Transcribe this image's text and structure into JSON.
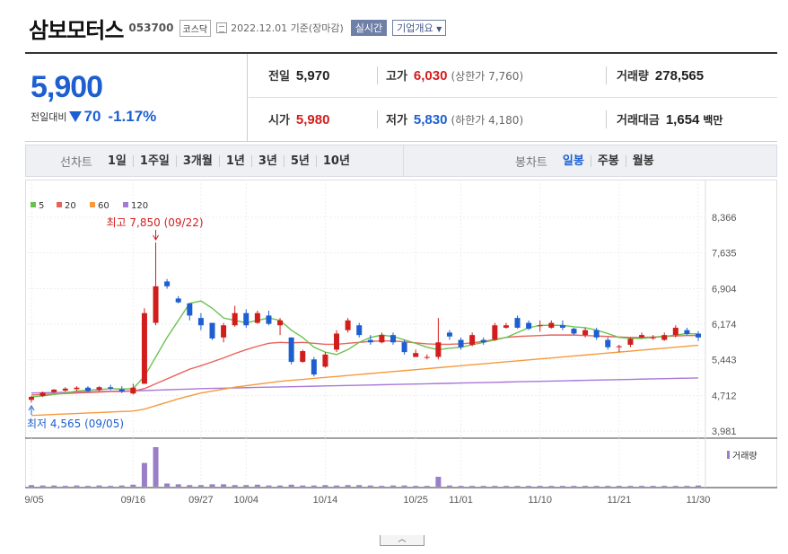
{
  "header": {
    "name": "삼보모터스",
    "code": "053700",
    "market": "코스닥",
    "date": "2022.12.01 기준(장마감)",
    "live_label": "실시간",
    "corp_label": "기업개요"
  },
  "quote": {
    "price": "5,900",
    "change_label": "전일대비",
    "change_amount": "70",
    "change_pct": "-1.17%",
    "prev_label": "전일",
    "prev": "5,970",
    "high_label": "고가",
    "high": "6,030",
    "upper_label": "(상한가 7,760)",
    "volume_label": "거래량",
    "volume": "278,565",
    "open_label": "시가",
    "open": "5,980",
    "low_label": "저가",
    "low": "5,830",
    "lower_label": "(하한가 4,180)",
    "amount_label": "거래대금",
    "amount": "1,654",
    "amount_unit": "백만"
  },
  "tabs": {
    "line_label": "선차트",
    "line_tabs": [
      "1일",
      "1주일",
      "3개월",
      "1년",
      "3년",
      "5년",
      "10년"
    ],
    "candle_label": "봉차트",
    "candle_tabs": [
      "일봉",
      "주봉",
      "월봉"
    ],
    "candle_selected": 0
  },
  "colors": {
    "up": "#d21d1d",
    "down": "#1d5fd0",
    "ma5": "#6ac24f",
    "ma20": "#e8625c",
    "ma60": "#f59a3e",
    "ma120": "#a878d8",
    "vol": "#9a7ec8"
  },
  "chart_data": {
    "type": "candlestick",
    "legend": [
      "5",
      "20",
      "60",
      "120"
    ],
    "y_ticks": [
      "8,366",
      "7,635",
      "6,904",
      "6,174",
      "5,443",
      "4,712",
      "3,981"
    ],
    "ylim": [
      3981,
      8366
    ],
    "x_ticks": [
      "09/05",
      "09/16",
      "09/27",
      "10/04",
      "10/14",
      "10/25",
      "11/01",
      "11/10",
      "11/21",
      "11/30"
    ],
    "x_tick_index": [
      0,
      9,
      15,
      19,
      26,
      34,
      38,
      45,
      52,
      59
    ],
    "high_annotation": "최고 7,850 (09/22)",
    "low_annotation": "최저 4,565 (09/05)",
    "volume_label": "거래량",
    "candles": [
      [
        4620,
        4700,
        4565,
        4680
      ],
      [
        4700,
        4790,
        4680,
        4770
      ],
      [
        4780,
        4840,
        4760,
        4830
      ],
      [
        4810,
        4880,
        4790,
        4850
      ],
      [
        4840,
        4900,
        4800,
        4870
      ],
      [
        4870,
        4900,
        4780,
        4800
      ],
      [
        4820,
        4900,
        4800,
        4880
      ],
      [
        4880,
        4930,
        4820,
        4850
      ],
      [
        4840,
        4900,
        4760,
        4790
      ],
      [
        4750,
        4950,
        4730,
        4870
      ],
      [
        4950,
        6500,
        4950,
        6400
      ],
      [
        6200,
        7850,
        6150,
        6950
      ],
      [
        7050,
        7100,
        6900,
        6950
      ],
      [
        6700,
        6750,
        6600,
        6620
      ],
      [
        6600,
        6600,
        6250,
        6350
      ],
      [
        6300,
        6400,
        6050,
        6150
      ],
      [
        6200,
        6200,
        5850,
        5880
      ],
      [
        5900,
        6200,
        5800,
        6150
      ],
      [
        6150,
        6550,
        6120,
        6400
      ],
      [
        6400,
        6480,
        6100,
        6150
      ],
      [
        6200,
        6450,
        6180,
        6400
      ],
      [
        6350,
        6450,
        6150,
        6180
      ],
      [
        6150,
        6300,
        5950,
        6250
      ],
      [
        5900,
        5900,
        5350,
        5400
      ],
      [
        5400,
        5650,
        5380,
        5620
      ],
      [
        5450,
        5500,
        5100,
        5140
      ],
      [
        5300,
        5600,
        5280,
        5550
      ],
      [
        5650,
        6050,
        5600,
        5980
      ],
      [
        6050,
        6300,
        6000,
        6250
      ],
      [
        6150,
        6200,
        5900,
        5950
      ],
      [
        5850,
        5950,
        5750,
        5800
      ],
      [
        5800,
        6000,
        5780,
        5950
      ],
      [
        5950,
        6000,
        5750,
        5800
      ],
      [
        5800,
        5850,
        5550,
        5600
      ],
      [
        5500,
        5650,
        5500,
        5580
      ],
      [
        5500,
        5550,
        5450,
        5500
      ],
      [
        5500,
        6300,
        5450,
        5800
      ],
      [
        6000,
        6050,
        5850,
        5920
      ],
      [
        5850,
        5900,
        5650,
        5700
      ],
      [
        5750,
        6000,
        5720,
        5950
      ],
      [
        5850,
        5900,
        5750,
        5800
      ],
      [
        5850,
        6200,
        5830,
        6150
      ],
      [
        6100,
        6200,
        6080,
        6150
      ],
      [
        6300,
        6350,
        6080,
        6100
      ],
      [
        6200,
        6250,
        6050,
        6080
      ],
      [
        6150,
        6250,
        6020,
        6150
      ],
      [
        6100,
        6250,
        6080,
        6200
      ],
      [
        6150,
        6250,
        6050,
        6100
      ],
      [
        6080,
        6100,
        5950,
        5980
      ],
      [
        5950,
        6100,
        5900,
        6050
      ],
      [
        6050,
        6100,
        5850,
        5900
      ],
      [
        5850,
        5900,
        5650,
        5700
      ],
      [
        5700,
        5750,
        5600,
        5720
      ],
      [
        5750,
        5900,
        5700,
        5870
      ],
      [
        5900,
        6000,
        5880,
        5950
      ],
      [
        5900,
        5950,
        5850,
        5900
      ],
      [
        5850,
        6000,
        5830,
        5950
      ],
      [
        5950,
        6150,
        5900,
        6100
      ],
      [
        6050,
        6100,
        5950,
        5970
      ],
      [
        5980,
        6030,
        5830,
        5900
      ]
    ],
    "ma5": [
      4680,
      4700,
      4730,
      4760,
      4800,
      4820,
      4830,
      4850,
      4840,
      4850,
      5100,
      5500,
      5900,
      6250,
      6600,
      6650,
      6500,
      6300,
      6250,
      6200,
      6250,
      6300,
      6250,
      6050,
      5900,
      5700,
      5600,
      5550,
      5650,
      5800,
      5900,
      5950,
      5920,
      5850,
      5780,
      5700,
      5650,
      5680,
      5700,
      5750,
      5800,
      5850,
      5900,
      6000,
      6100,
      6150,
      6150,
      6150,
      6120,
      6100,
      6050,
      5980,
      5900,
      5880,
      5880,
      5900,
      5920,
      5950,
      5980,
      5970
    ],
    "ma20": [
      4720,
      4730,
      4740,
      4750,
      4760,
      4770,
      4780,
      4790,
      4790,
      4800,
      4850,
      4950,
      5050,
      5150,
      5250,
      5320,
      5400,
      5480,
      5570,
      5650,
      5720,
      5780,
      5800,
      5790,
      5800,
      5780,
      5760,
      5760,
      5780,
      5800,
      5820,
      5830,
      5830,
      5810,
      5790,
      5770,
      5760,
      5760,
      5770,
      5790,
      5820,
      5860,
      5900,
      5920,
      5930,
      5940,
      5950,
      5950,
      5950,
      5940,
      5930,
      5920,
      5910,
      5900,
      5900,
      5910,
      5920,
      5930,
      5940,
      5940
    ],
    "ma60": [
      4300,
      4310,
      4320,
      4330,
      4340,
      4350,
      4360,
      4370,
      4380,
      4390,
      4430,
      4500,
      4570,
      4640,
      4700,
      4760,
      4800,
      4840,
      4880,
      4910,
      4940,
      4970,
      5000,
      5020,
      5040,
      5060,
      5080,
      5100,
      5120,
      5140,
      5160,
      5180,
      5200,
      5220,
      5240,
      5260,
      5280,
      5300,
      5320,
      5340,
      5360,
      5380,
      5400,
      5420,
      5440,
      5460,
      5480,
      5500,
      5520,
      5540,
      5560,
      5580,
      5600,
      5620,
      5640,
      5660,
      5680,
      5700,
      5720,
      5740
    ],
    "ma120": [
      4760,
      4765,
      4770,
      4775,
      4780,
      4785,
      4790,
      4795,
      4800,
      4805,
      4810,
      4818,
      4826,
      4834,
      4842,
      4850,
      4855,
      4860,
      4865,
      4870,
      4875,
      4880,
      4885,
      4890,
      4895,
      4900,
      4905,
      4910,
      4915,
      4920,
      4925,
      4930,
      4935,
      4940,
      4945,
      4950,
      4955,
      4960,
      4965,
      4970,
      4975,
      4980,
      4985,
      4990,
      4995,
      5000,
      5005,
      5010,
      5015,
      5020,
      5025,
      5030,
      5035,
      5040,
      5045,
      5050,
      5055,
      5060,
      5065,
      5070
    ],
    "volume": [
      4,
      3,
      3,
      2,
      3,
      2,
      3,
      2,
      3,
      5,
      60,
      100,
      8,
      6,
      4,
      4,
      6,
      6,
      4,
      4,
      5,
      3,
      3,
      5,
      3,
      3,
      4,
      3,
      4,
      4,
      3,
      2,
      3,
      3,
      2,
      2,
      25,
      3,
      2,
      2,
      2,
      2,
      2,
      2,
      2,
      2,
      2,
      2,
      2,
      2,
      2,
      2,
      2,
      2,
      2,
      2,
      2,
      2,
      2,
      3
    ]
  }
}
